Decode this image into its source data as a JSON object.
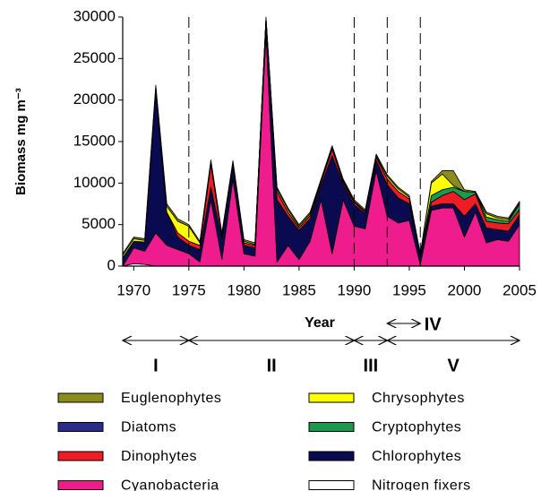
{
  "chart_data": {
    "type": "stacked-area",
    "ylabel": "Biomass mg m⁻³",
    "xlabel": "Year",
    "x": [
      1969,
      1970,
      1971,
      1972,
      1973,
      1974,
      1975,
      1976,
      1977,
      1978,
      1979,
      1980,
      1981,
      1982,
      1983,
      1984,
      1985,
      1986,
      1987,
      1988,
      1989,
      1990,
      1991,
      1992,
      1993,
      1994,
      1995,
      1996,
      1997,
      1998,
      1999,
      2000,
      2001,
      2002,
      2003,
      2004,
      2005
    ],
    "xlim": [
      1969,
      2005
    ],
    "xticks": [
      1970,
      1975,
      1980,
      1985,
      1990,
      1995,
      2000,
      2005
    ],
    "ylim": [
      0,
      30000
    ],
    "yticks": [
      0,
      5000,
      10000,
      15000,
      20000,
      25000,
      30000
    ],
    "dividers": [
      1975,
      1990,
      1993,
      1996
    ],
    "periods": [
      {
        "label": "I",
        "start": 1969,
        "end": 1975
      },
      {
        "label": "II",
        "start": 1975,
        "end": 1990
      },
      {
        "label": "III",
        "start": 1990,
        "end": 1993
      },
      {
        "label": "IV",
        "start": 1993,
        "end": 1996
      },
      {
        "label": "V",
        "start": 1993,
        "end": 2005
      }
    ],
    "series": [
      {
        "name": "Euglenophytes",
        "color": "#8c8c1e",
        "values": [
          200,
          200,
          200,
          200,
          300,
          300,
          200,
          200,
          200,
          200,
          200,
          200,
          200,
          200,
          200,
          200,
          200,
          200,
          200,
          200,
          200,
          200,
          200,
          200,
          200,
          200,
          200,
          100,
          200,
          400,
          1800,
          200,
          100,
          200,
          200,
          200,
          200
        ]
      },
      {
        "name": "Chrysophytes",
        "color": "#ffff00",
        "values": [
          300,
          300,
          200,
          300,
          700,
          1400,
          1800,
          300,
          300,
          200,
          200,
          200,
          100,
          0,
          300,
          300,
          200,
          200,
          200,
          200,
          200,
          100,
          100,
          200,
          300,
          300,
          200,
          100,
          1500,
          1900,
          200,
          0,
          0,
          400,
          200,
          200,
          100
        ]
      },
      {
        "name": "Diatoms",
        "color": "#2b2b8c",
        "values": [
          0,
          0,
          0,
          0,
          0,
          0,
          0,
          0,
          0,
          0,
          0,
          0,
          0,
          0,
          0,
          0,
          0,
          0,
          0,
          0,
          0,
          0,
          0,
          0,
          0,
          0,
          0,
          0,
          0,
          0,
          0,
          0,
          0,
          0,
          0,
          0,
          0
        ]
      },
      {
        "name": "Cryptophytes",
        "color": "#1a9a4a",
        "values": [
          0,
          0,
          0,
          0,
          0,
          0,
          0,
          0,
          0,
          0,
          0,
          0,
          0,
          0,
          0,
          0,
          0,
          0,
          0,
          0,
          0,
          0,
          0,
          0,
          0,
          0,
          0,
          0,
          800,
          700,
          500,
          1000,
          200,
          500,
          400,
          300,
          700
        ]
      },
      {
        "name": "Dinophytes",
        "color": "#ee1c24",
        "values": [
          0,
          0,
          0,
          0,
          0,
          500,
          500,
          500,
          2800,
          300,
          300,
          300,
          300,
          300,
          1000,
          500,
          300,
          400,
          400,
          800,
          300,
          300,
          200,
          400,
          700,
          800,
          600,
          100,
          500,
          1000,
          1500,
          2000,
          1200,
          800,
          800,
          900,
          600
        ]
      },
      {
        "name": "Chlorophytes",
        "color": "#0a0a50",
        "values": [
          1000,
          800,
          1100,
          17300,
          4000,
          1500,
          1000,
          1500,
          1500,
          2500,
          1500,
          1000,
          1000,
          1500,
          7500,
          3500,
          3500,
          2700,
          1700,
          11800,
          1800,
          2600,
          1800,
          1200,
          3800,
          3000,
          2000,
          1000,
          500,
          500,
          500,
          2500,
          1000,
          1800,
          1200,
          1200,
          1200
        ]
      },
      {
        "name": "Cyanobacteria",
        "color": "#ee1c8c",
        "values": [
          0,
          1900,
          1600,
          4000,
          2500,
          2000,
          1500,
          500,
          8000,
          800,
          10500,
          1500,
          1200,
          28000,
          500,
          2500,
          800,
          3000,
          8000,
          1500,
          8000,
          4800,
          4500,
          11500,
          6000,
          5200,
          5500,
          200,
          6700,
          7000,
          7000,
          3500,
          6500,
          2800,
          3200,
          3000,
          5000
        ]
      },
      {
        "name": "Nitrogen fixers",
        "color": "#ffffff",
        "values": [
          0,
          300,
          200,
          0,
          0,
          0,
          0,
          0,
          0,
          0,
          0,
          0,
          0,
          0,
          0,
          0,
          0,
          0,
          0,
          0,
          0,
          0,
          0,
          0,
          0,
          0,
          0,
          0,
          0,
          0,
          0,
          0,
          0,
          0,
          0,
          0,
          0
        ]
      }
    ]
  }
}
